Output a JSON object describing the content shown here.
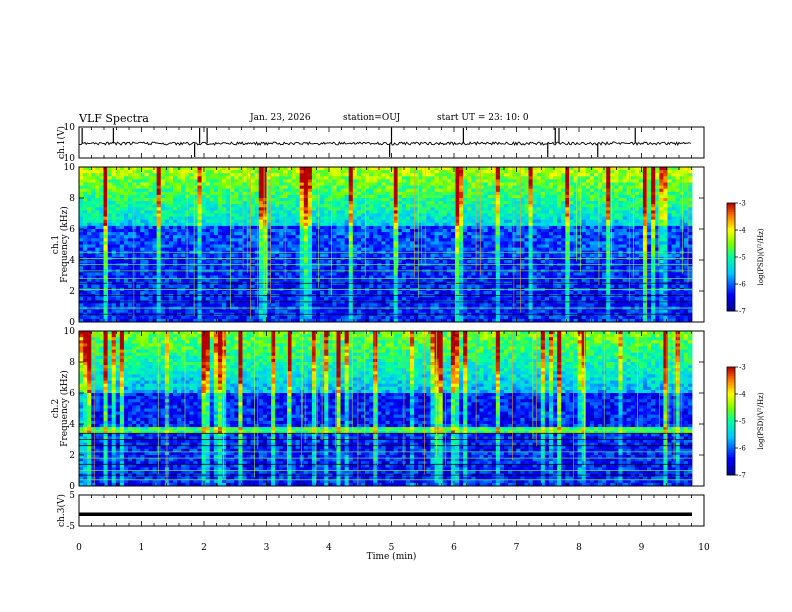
{
  "header": {
    "title": "VLF Spectra",
    "date": "Jan. 23, 2026",
    "station": "station=OUJ",
    "start_ut": "start  UT =   23: 10: 0"
  },
  "chart_data": [
    {
      "type": "line",
      "panel": "ch.1 waveform",
      "ylabel": "ch.1(V)",
      "ylim": [
        -10,
        10
      ],
      "y_ticks": [
        10,
        -10
      ],
      "xlim": [
        0,
        10
      ],
      "baseline": 0,
      "spikes_min": [
        0.05,
        0.55,
        1.85,
        1.93,
        2.05,
        4.97,
        5.0,
        6.15,
        7.5,
        7.62,
        7.68,
        8.3,
        8.9
      ]
    },
    {
      "type": "heatmap",
      "panel": "ch.1 spectrogram",
      "ylabel": "ch.1\nFrequency (kHz)",
      "ylim": [
        0,
        10
      ],
      "y_ticks": [
        0,
        2,
        4,
        6,
        8,
        10
      ],
      "xlim": [
        0,
        10
      ],
      "colorbar": {
        "label": "log(PSD)(V²/Hz)",
        "range": [
          -7,
          -3
        ],
        "ticks": [
          -3,
          -4,
          -5,
          -6,
          -7
        ]
      }
    },
    {
      "type": "heatmap",
      "panel": "ch.2 spectrogram",
      "ylabel": "ch.2\nFrequency (kHz)",
      "ylim": [
        0,
        10
      ],
      "y_ticks": [
        0,
        2,
        4,
        6,
        8,
        10
      ],
      "xlim": [
        0,
        10
      ],
      "colorbar": {
        "label": "log(PSD)(V²/Hz)",
        "range": [
          -7,
          -3
        ],
        "ticks": [
          -3,
          -4,
          -5,
          -6,
          -7
        ]
      }
    },
    {
      "type": "line",
      "panel": "ch.3 waveform",
      "ylabel": "ch.3(V)",
      "ylim": [
        -5,
        5
      ],
      "y_ticks": [
        5,
        -5
      ],
      "xlim": [
        0,
        10
      ],
      "value": -1.2,
      "xlabel": "Time (min)",
      "x_ticks": [
        0,
        1,
        2,
        3,
        4,
        5,
        6,
        7,
        8,
        9,
        10
      ]
    }
  ]
}
